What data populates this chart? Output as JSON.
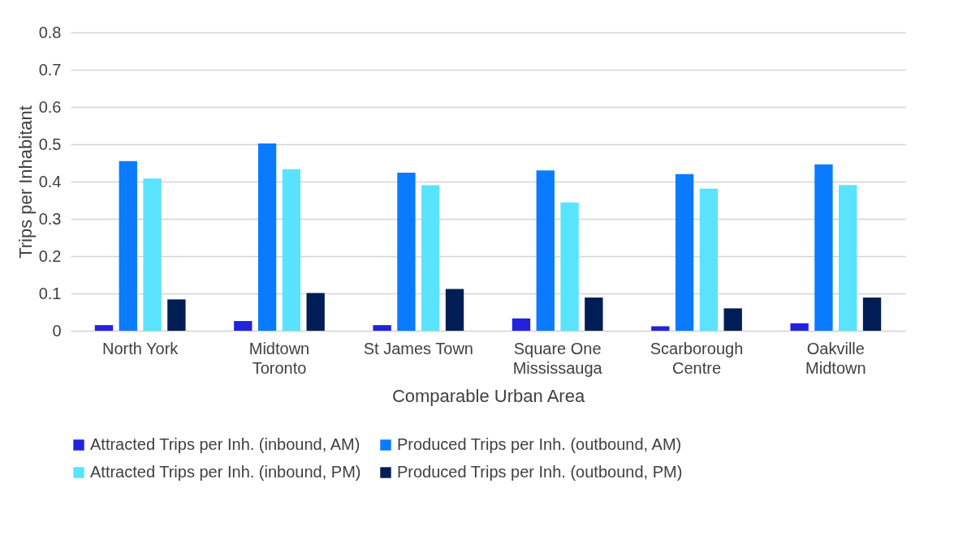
{
  "chart_data": {
    "type": "bar",
    "xlabel": "Comparable Urban Area",
    "ylabel": "Trips per Inhabitant",
    "categories": [
      "North York",
      "Midtown Toronto",
      "St James Town",
      "Square One Mississauga",
      "Scarborough Centre",
      "Oakville Midtown"
    ],
    "series": [
      {
        "name": "Attracted Trips per Inh. (inbound, AM)",
        "color": "#2222dd",
        "values": [
          0.015,
          0.026,
          0.015,
          0.033,
          0.012,
          0.02
        ]
      },
      {
        "name": "Produced Trips per Inh. (outbound, AM)",
        "color": "#0a7bff",
        "values": [
          0.455,
          0.502,
          0.424,
          0.43,
          0.42,
          0.446
        ]
      },
      {
        "name": "Attracted Trips per Inh. (inbound, PM)",
        "color": "#5ae3ff",
        "values": [
          0.408,
          0.433,
          0.39,
          0.344,
          0.381,
          0.391
        ]
      },
      {
        "name": "Produced Trips per Inh. (outbound, PM)",
        "color": "#001e55",
        "values": [
          0.084,
          0.101,
          0.112,
          0.089,
          0.06,
          0.089
        ]
      }
    ],
    "ylim": [
      0,
      0.8
    ],
    "yticks": [
      0,
      0.1,
      0.2,
      0.3,
      0.4,
      0.5,
      0.6,
      0.7,
      0.8
    ],
    "grid": "y",
    "legend": "bottom"
  }
}
